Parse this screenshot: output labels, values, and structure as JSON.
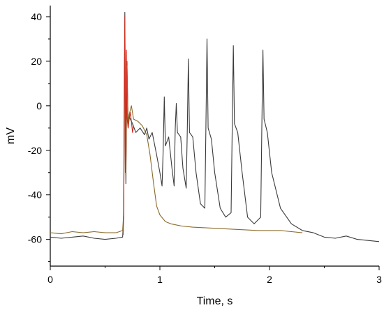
{
  "chart_data": {
    "type": "line",
    "xlabel": "Time, s",
    "ylabel": "mV",
    "xlim": [
      0,
      3
    ],
    "ylim": [
      -72,
      45
    ],
    "xticks": [
      0,
      1,
      2,
      3
    ],
    "xtick_labels": [
      "0",
      "1",
      "2",
      "3"
    ],
    "yticks": [
      -60,
      -40,
      -20,
      0,
      20,
      40
    ],
    "ytick_labels": [
      "-60",
      "-40",
      "-20",
      "0",
      "20",
      "40"
    ],
    "grid": false,
    "series": [
      {
        "color": "#3a3a3a",
        "points": [
          [
            0.0,
            -59
          ],
          [
            0.1,
            -59.5
          ],
          [
            0.2,
            -59
          ],
          [
            0.3,
            -58.5
          ],
          [
            0.4,
            -59.5
          ],
          [
            0.5,
            -60
          ],
          [
            0.6,
            -59.5
          ],
          [
            0.66,
            -59
          ],
          [
            0.67,
            -50
          ],
          [
            0.68,
            42
          ],
          [
            0.69,
            -35
          ],
          [
            0.7,
            20
          ],
          [
            0.71,
            -10
          ],
          [
            0.72,
            -5
          ],
          [
            0.75,
            -8
          ],
          [
            0.78,
            -12
          ],
          [
            0.82,
            -10
          ],
          [
            0.86,
            -13
          ],
          [
            0.88,
            -10
          ],
          [
            0.9,
            -15
          ],
          [
            0.93,
            -12
          ],
          [
            0.97,
            -22
          ],
          [
            1.0,
            -30
          ],
          [
            1.02,
            -36
          ],
          [
            1.03,
            -20
          ],
          [
            1.04,
            4
          ],
          [
            1.05,
            -18
          ],
          [
            1.08,
            -14
          ],
          [
            1.11,
            -28
          ],
          [
            1.13,
            -36
          ],
          [
            1.14,
            -10
          ],
          [
            1.15,
            1
          ],
          [
            1.16,
            -12
          ],
          [
            1.19,
            -14
          ],
          [
            1.21,
            -28
          ],
          [
            1.24,
            -37
          ],
          [
            1.25,
            -10
          ],
          [
            1.26,
            21
          ],
          [
            1.27,
            -12
          ],
          [
            1.3,
            -14
          ],
          [
            1.33,
            -30
          ],
          [
            1.37,
            -44
          ],
          [
            1.41,
            -46
          ],
          [
            1.42,
            -10
          ],
          [
            1.43,
            30
          ],
          [
            1.44,
            -10
          ],
          [
            1.47,
            -15
          ],
          [
            1.5,
            -30
          ],
          [
            1.55,
            -46
          ],
          [
            1.6,
            -50
          ],
          [
            1.65,
            -48
          ],
          [
            1.66,
            -10
          ],
          [
            1.67,
            27
          ],
          [
            1.68,
            -8
          ],
          [
            1.71,
            -12
          ],
          [
            1.75,
            -30
          ],
          [
            1.8,
            -50
          ],
          [
            1.86,
            -53
          ],
          [
            1.92,
            -50
          ],
          [
            1.93,
            -10
          ],
          [
            1.94,
            25
          ],
          [
            1.95,
            -6
          ],
          [
            1.98,
            -12
          ],
          [
            2.02,
            -30
          ],
          [
            2.1,
            -46
          ],
          [
            2.2,
            -53
          ],
          [
            2.3,
            -56
          ],
          [
            2.4,
            -57
          ],
          [
            2.5,
            -59
          ],
          [
            2.6,
            -59.5
          ],
          [
            2.7,
            -58.5
          ],
          [
            2.8,
            -60
          ],
          [
            2.9,
            -60.5
          ],
          [
            3.0,
            -61
          ]
        ]
      },
      {
        "color": "#8a6a2a",
        "points": [
          [
            0.0,
            -57
          ],
          [
            0.1,
            -57.5
          ],
          [
            0.2,
            -56.5
          ],
          [
            0.3,
            -57
          ],
          [
            0.4,
            -56.5
          ],
          [
            0.5,
            -57
          ],
          [
            0.6,
            -57
          ],
          [
            0.66,
            -56
          ],
          [
            0.67,
            -48
          ],
          [
            0.68,
            35
          ],
          [
            0.69,
            -30
          ],
          [
            0.7,
            18
          ],
          [
            0.71,
            -8
          ],
          [
            0.72,
            -4
          ],
          [
            0.74,
            0
          ],
          [
            0.76,
            -6
          ],
          [
            0.8,
            -7
          ],
          [
            0.84,
            -9
          ],
          [
            0.88,
            -13
          ],
          [
            0.91,
            -22
          ],
          [
            0.94,
            -34
          ],
          [
            0.97,
            -45
          ],
          [
            1.0,
            -49
          ],
          [
            1.05,
            -52
          ],
          [
            1.1,
            -53
          ],
          [
            1.2,
            -54
          ],
          [
            1.3,
            -54.5
          ],
          [
            1.5,
            -55
          ],
          [
            1.7,
            -55.5
          ],
          [
            1.9,
            -56
          ],
          [
            2.1,
            -56
          ],
          [
            2.2,
            -56.5
          ],
          [
            2.3,
            -57
          ]
        ]
      },
      {
        "color": "#cc2a1a",
        "points": [
          [
            0.665,
            -58
          ],
          [
            0.67,
            -45
          ],
          [
            0.675,
            10
          ],
          [
            0.68,
            40
          ],
          [
            0.685,
            -30
          ],
          [
            0.69,
            -20
          ],
          [
            0.695,
            25
          ],
          [
            0.7,
            -5
          ],
          [
            0.71,
            -10
          ],
          [
            0.72,
            -6
          ],
          [
            0.73,
            -3
          ],
          [
            0.74,
            -7
          ],
          [
            0.75,
            -12
          ],
          [
            0.76,
            -9
          ]
        ]
      }
    ]
  }
}
